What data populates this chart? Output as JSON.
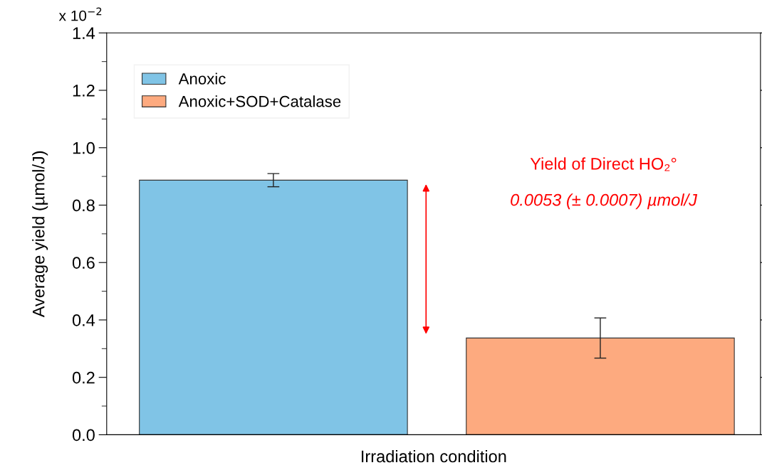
{
  "chart_data": {
    "type": "bar",
    "xlabel": "Irradiation condition",
    "ylabel": "Average yield (µmol/J)",
    "categories": [
      null,
      null
    ],
    "series": [
      {
        "name": "Anoxic",
        "color": "#80c4e6",
        "values": [
          0.887,
          null
        ],
        "errors": [
          0.023,
          null
        ]
      },
      {
        "name": "Anoxic+SOD+Catalase",
        "color": "#fdaa7f",
        "values": [
          null,
          0.337
        ],
        "errors": [
          null,
          0.07
        ]
      }
    ],
    "ylim": [
      0,
      1.4
    ],
    "yticks": [
      {
        "value": 0,
        "label": "0.0"
      },
      0.2,
      0.4,
      0.6,
      0.8,
      {
        "value": 1,
        "label": "1.0"
      },
      1.2,
      1.4
    ],
    "annotations": [
      "Yield of Direct HO₂°",
      "0.0053 (± 0.0007) µmol/J",
      "x 10$^{−2}$"
    ],
    "legend": "top left",
    "grid": false
  }
}
